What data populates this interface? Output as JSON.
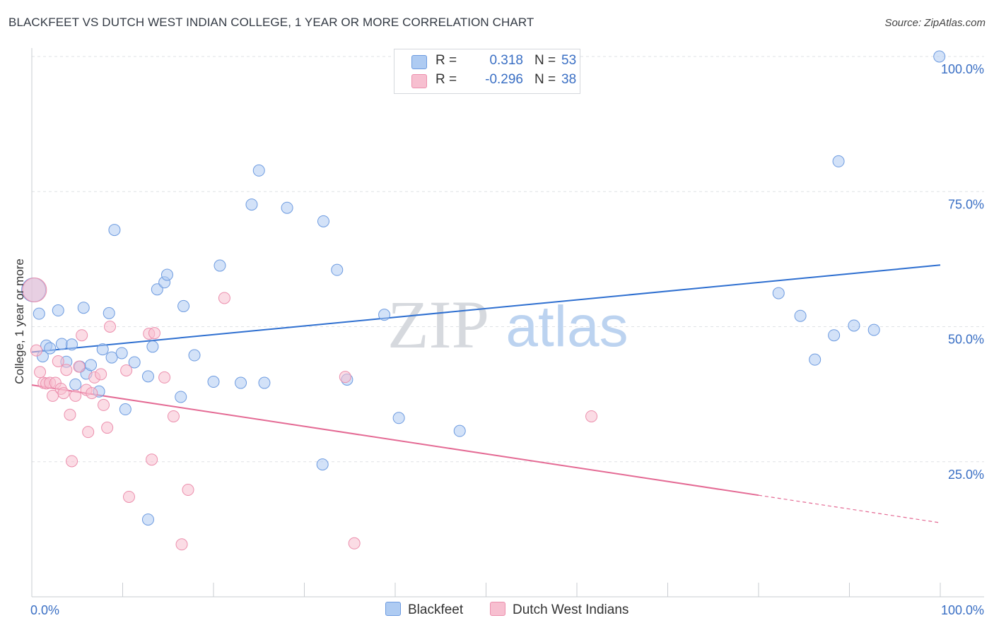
{
  "title": "BLACKFEET VS DUTCH WEST INDIAN COLLEGE, 1 YEAR OR MORE CORRELATION CHART",
  "source": "Source: ZipAtlas.com",
  "watermark": {
    "zip": "ZIP",
    "atlas": "atlas"
  },
  "legend": {
    "r_label": "R =",
    "n_label": "N =",
    "rows": [
      {
        "r_value": "0.318",
        "n_value": "53",
        "color": "#aecbf2"
      },
      {
        "r_value": "-0.296",
        "n_value": "38",
        "color": "#f7bfd0"
      }
    ]
  },
  "bottom_legend": [
    {
      "label": "Blackfeet",
      "color": "#aecbf2"
    },
    {
      "label": "Dutch West Indians",
      "color": "#f7bfd0"
    }
  ],
  "chart_data": {
    "type": "scatter",
    "ylabel": "College, 1 year or more",
    "xlabel": "",
    "xlim": [
      0,
      100
    ],
    "ylim": [
      0,
      100
    ],
    "x_tick_labels": [
      "0.0%",
      "100.0%"
    ],
    "y_tick_labels": [
      "25.0%",
      "50.0%",
      "75.0%",
      "100.0%"
    ],
    "y_ticks": [
      25,
      50,
      75,
      100
    ],
    "grid": true,
    "legend_position": "top-center",
    "series": [
      {
        "name": "Blackfeet",
        "color": "#aecbf2",
        "stroke": "#6d9be0",
        "line_color": "#2e6fd0",
        "trend": {
          "x": [
            0,
            100
          ],
          "y": [
            45.3,
            61.4
          ]
        },
        "points": [
          [
            0.2,
            56.8
          ],
          [
            0.8,
            52.4
          ],
          [
            1.2,
            44.5
          ],
          [
            1.6,
            46.5
          ],
          [
            2.0,
            46.0
          ],
          [
            2.9,
            53.0
          ],
          [
            3.3,
            46.8
          ],
          [
            3.8,
            43.5
          ],
          [
            4.4,
            46.7
          ],
          [
            4.8,
            39.3
          ],
          [
            5.3,
            42.6
          ],
          [
            5.7,
            53.5
          ],
          [
            6.0,
            41.3
          ],
          [
            6.5,
            42.9
          ],
          [
            7.4,
            38.0
          ],
          [
            7.8,
            45.8
          ],
          [
            8.5,
            52.5
          ],
          [
            8.8,
            44.3
          ],
          [
            9.1,
            67.9
          ],
          [
            9.9,
            45.1
          ],
          [
            10.3,
            34.7
          ],
          [
            11.3,
            43.4
          ],
          [
            12.8,
            40.8
          ],
          [
            13.3,
            46.3
          ],
          [
            13.8,
            56.9
          ],
          [
            14.6,
            58.2
          ],
          [
            14.9,
            59.6
          ],
          [
            16.4,
            37.0
          ],
          [
            16.7,
            53.8
          ],
          [
            17.9,
            44.7
          ],
          [
            20.0,
            39.8
          ],
          [
            20.7,
            61.3
          ],
          [
            23.0,
            39.6
          ],
          [
            24.2,
            72.6
          ],
          [
            25.0,
            78.9
          ],
          [
            25.6,
            39.6
          ],
          [
            28.1,
            72.0
          ],
          [
            32.1,
            69.5
          ],
          [
            33.6,
            60.5
          ],
          [
            34.7,
            40.2
          ],
          [
            38.8,
            52.2
          ],
          [
            40.4,
            33.1
          ],
          [
            47.1,
            30.7
          ],
          [
            12.8,
            14.3
          ],
          [
            32.0,
            24.5
          ],
          [
            82.2,
            56.2
          ],
          [
            84.6,
            52.0
          ],
          [
            86.2,
            43.9
          ],
          [
            88.3,
            48.4
          ],
          [
            90.5,
            50.2
          ],
          [
            92.7,
            49.4
          ],
          [
            88.8,
            80.6
          ],
          [
            99.9,
            100.0
          ]
        ]
      },
      {
        "name": "Dutch West Indians",
        "color": "#f7bfd0",
        "stroke": "#ec8fad",
        "line_color": "#e46a94",
        "trend": {
          "x": [
            0,
            100
          ],
          "y": [
            39.2,
            13.7
          ],
          "solid_until": 80
        },
        "points": [
          [
            0.3,
            56.8
          ],
          [
            0.5,
            45.6
          ],
          [
            0.9,
            41.6
          ],
          [
            1.3,
            39.6
          ],
          [
            1.6,
            39.5
          ],
          [
            2.0,
            39.6
          ],
          [
            2.3,
            37.2
          ],
          [
            2.6,
            39.6
          ],
          [
            2.9,
            43.6
          ],
          [
            3.2,
            38.5
          ],
          [
            3.5,
            37.7
          ],
          [
            3.8,
            42.0
          ],
          [
            4.2,
            33.7
          ],
          [
            4.4,
            25.1
          ],
          [
            4.8,
            37.2
          ],
          [
            5.2,
            42.6
          ],
          [
            5.5,
            48.4
          ],
          [
            6.0,
            38.3
          ],
          [
            6.2,
            30.5
          ],
          [
            6.6,
            37.7
          ],
          [
            6.9,
            40.6
          ],
          [
            7.6,
            41.2
          ],
          [
            7.9,
            35.5
          ],
          [
            8.3,
            31.3
          ],
          [
            8.6,
            50.0
          ],
          [
            10.4,
            41.9
          ],
          [
            10.7,
            18.5
          ],
          [
            12.9,
            48.7
          ],
          [
            13.2,
            25.4
          ],
          [
            13.5,
            48.8
          ],
          [
            14.6,
            40.6
          ],
          [
            15.6,
            33.4
          ],
          [
            16.5,
            9.7
          ],
          [
            17.2,
            19.8
          ],
          [
            21.2,
            55.3
          ],
          [
            34.5,
            40.7
          ],
          [
            35.5,
            9.9
          ],
          [
            61.6,
            33.4
          ]
        ]
      }
    ]
  }
}
